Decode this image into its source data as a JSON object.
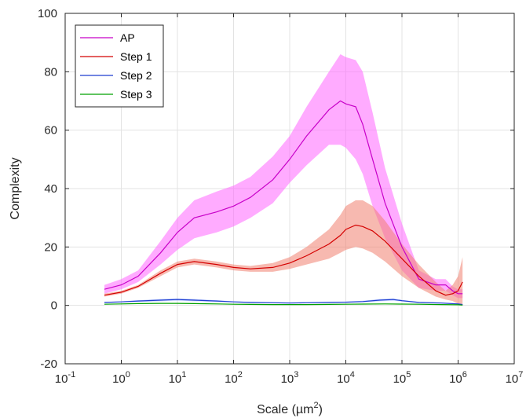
{
  "chart_data": {
    "type": "line",
    "xlabel": "Scale (µm",
    "xlabel_sup": "2",
    "xlabel_close": ")",
    "ylabel": "Complexity",
    "x_scale": "log",
    "xlim": [
      0.1,
      10000000
    ],
    "ylim": [
      -20,
      100
    ],
    "grid": true,
    "legend_position": "top-left",
    "x_ticks": [
      {
        "value": 0.1,
        "base": "10",
        "exp": "-1"
      },
      {
        "value": 1,
        "base": "10",
        "exp": "0"
      },
      {
        "value": 10,
        "base": "10",
        "exp": "1"
      },
      {
        "value": 100,
        "base": "10",
        "exp": "2"
      },
      {
        "value": 1000,
        "base": "10",
        "exp": "3"
      },
      {
        "value": 10000,
        "base": "10",
        "exp": "4"
      },
      {
        "value": 100000,
        "base": "10",
        "exp": "5"
      },
      {
        "value": 1000000,
        "base": "10",
        "exp": "6"
      },
      {
        "value": 10000000,
        "base": "10",
        "exp": "7"
      }
    ],
    "y_ticks": [
      {
        "value": -20,
        "label": "-20"
      },
      {
        "value": 0,
        "label": "0"
      },
      {
        "value": 20,
        "label": "20"
      },
      {
        "value": 40,
        "label": "40"
      },
      {
        "value": 60,
        "label": "60"
      },
      {
        "value": 80,
        "label": "80"
      },
      {
        "value": 100,
        "label": "100"
      }
    ],
    "series": [
      {
        "name": "AP",
        "color": "#c800c8",
        "band_color": "#ff66ff",
        "x": [
          0.5,
          1,
          2,
          5,
          10,
          20,
          50,
          100,
          200,
          500,
          1000,
          2000,
          5000,
          8000,
          10000,
          15000,
          20000,
          30000,
          50000,
          100000,
          200000,
          400000,
          600000,
          800000,
          1000000,
          1200000
        ],
        "y": [
          5.5,
          7,
          10,
          18,
          25,
          30,
          32,
          34,
          37,
          43,
          50,
          58,
          67,
          70,
          69,
          68,
          62,
          50,
          35,
          20,
          9,
          7,
          7,
          5,
          4,
          4
        ],
        "lower": [
          4,
          5.5,
          8,
          14,
          19,
          23,
          25,
          27,
          30,
          35,
          42,
          48,
          55,
          55,
          54,
          50,
          45,
          34,
          23,
          12,
          6,
          5,
          5,
          3.5,
          2.5,
          2.5
        ],
        "upper": [
          7,
          9,
          12,
          22,
          30,
          36,
          39,
          41,
          44,
          51,
          58,
          68,
          80,
          86,
          85,
          84,
          80,
          66,
          47,
          28,
          12,
          9,
          9,
          6.5,
          5.5,
          5.5
        ]
      },
      {
        "name": "Step 1",
        "color": "#d40000",
        "band_color": "#f08070",
        "x": [
          0.5,
          1,
          2,
          5,
          10,
          20,
          50,
          100,
          200,
          500,
          1000,
          2000,
          5000,
          8000,
          10000,
          15000,
          20000,
          30000,
          50000,
          100000,
          200000,
          400000,
          600000,
          800000,
          1000000,
          1200000
        ],
        "y": [
          3.5,
          4.5,
          6.5,
          11,
          14,
          15,
          14,
          13,
          12.5,
          13,
          14.5,
          17,
          21,
          24,
          26,
          27.5,
          27,
          25.5,
          22,
          16,
          10,
          5,
          3.5,
          4,
          5,
          8
        ],
        "lower": [
          3,
          4,
          6,
          10,
          13,
          14,
          13,
          12,
          11.5,
          11.5,
          12.5,
          14,
          16,
          18,
          19,
          20,
          19.5,
          18,
          15,
          10,
          6,
          3,
          2,
          1.5,
          0.5,
          0
        ],
        "upper": [
          4,
          5,
          7,
          12,
          15,
          16,
          15,
          14,
          13.5,
          14.5,
          16.5,
          20,
          26,
          31,
          34,
          36,
          36,
          34,
          29,
          21,
          14,
          8,
          5,
          7,
          10,
          16.5
        ]
      },
      {
        "name": "Step 2",
        "color": "#1f3fd0",
        "band_color": "#9ab0ff",
        "x": [
          0.5,
          1,
          2,
          5,
          10,
          20,
          50,
          100,
          200,
          500,
          1000,
          2000,
          5000,
          10000,
          20000,
          40000,
          70000,
          100000,
          200000,
          500000,
          1000000,
          1200000
        ],
        "y": [
          1.0,
          1.2,
          1.5,
          1.8,
          2.0,
          1.8,
          1.5,
          1.2,
          1.0,
          0.9,
          0.8,
          0.9,
          1.0,
          1.1,
          1.3,
          1.8,
          2.0,
          1.6,
          1.0,
          0.8,
          0.5,
          0.3
        ],
        "lower": [
          0.8,
          1.0,
          1.2,
          1.4,
          1.6,
          1.4,
          1.2,
          1.0,
          0.8,
          0.7,
          0.6,
          0.7,
          0.8,
          0.9,
          1.0,
          1.4,
          1.6,
          1.3,
          0.8,
          0.6,
          0.3,
          0.1
        ],
        "upper": [
          1.2,
          1.4,
          1.8,
          2.2,
          2.4,
          2.2,
          1.8,
          1.4,
          1.2,
          1.1,
          1.0,
          1.1,
          1.2,
          1.3,
          1.6,
          2.2,
          2.4,
          1.9,
          1.2,
          1.0,
          0.7,
          0.5
        ]
      },
      {
        "name": "Step 3",
        "color": "#00a000",
        "band_color": "#90e090",
        "x": [
          0.5,
          1,
          2,
          5,
          10,
          20,
          50,
          100,
          200,
          500,
          1000,
          2000,
          5000,
          10000,
          20000,
          50000,
          100000,
          200000,
          500000,
          1000000,
          1200000
        ],
        "y": [
          0.4,
          0.5,
          0.6,
          0.7,
          0.7,
          0.6,
          0.5,
          0.4,
          0.35,
          0.3,
          0.3,
          0.3,
          0.35,
          0.4,
          0.45,
          0.5,
          0.45,
          0.4,
          0.3,
          0.2,
          0.1
        ],
        "lower": [
          0.3,
          0.4,
          0.5,
          0.6,
          0.6,
          0.5,
          0.4,
          0.3,
          0.25,
          0.2,
          0.2,
          0.2,
          0.25,
          0.3,
          0.35,
          0.4,
          0.35,
          0.3,
          0.2,
          0.1,
          0.0
        ],
        "upper": [
          0.5,
          0.6,
          0.7,
          0.8,
          0.8,
          0.7,
          0.6,
          0.5,
          0.45,
          0.4,
          0.4,
          0.4,
          0.45,
          0.5,
          0.55,
          0.6,
          0.55,
          0.5,
          0.4,
          0.3,
          0.2
        ]
      }
    ]
  }
}
